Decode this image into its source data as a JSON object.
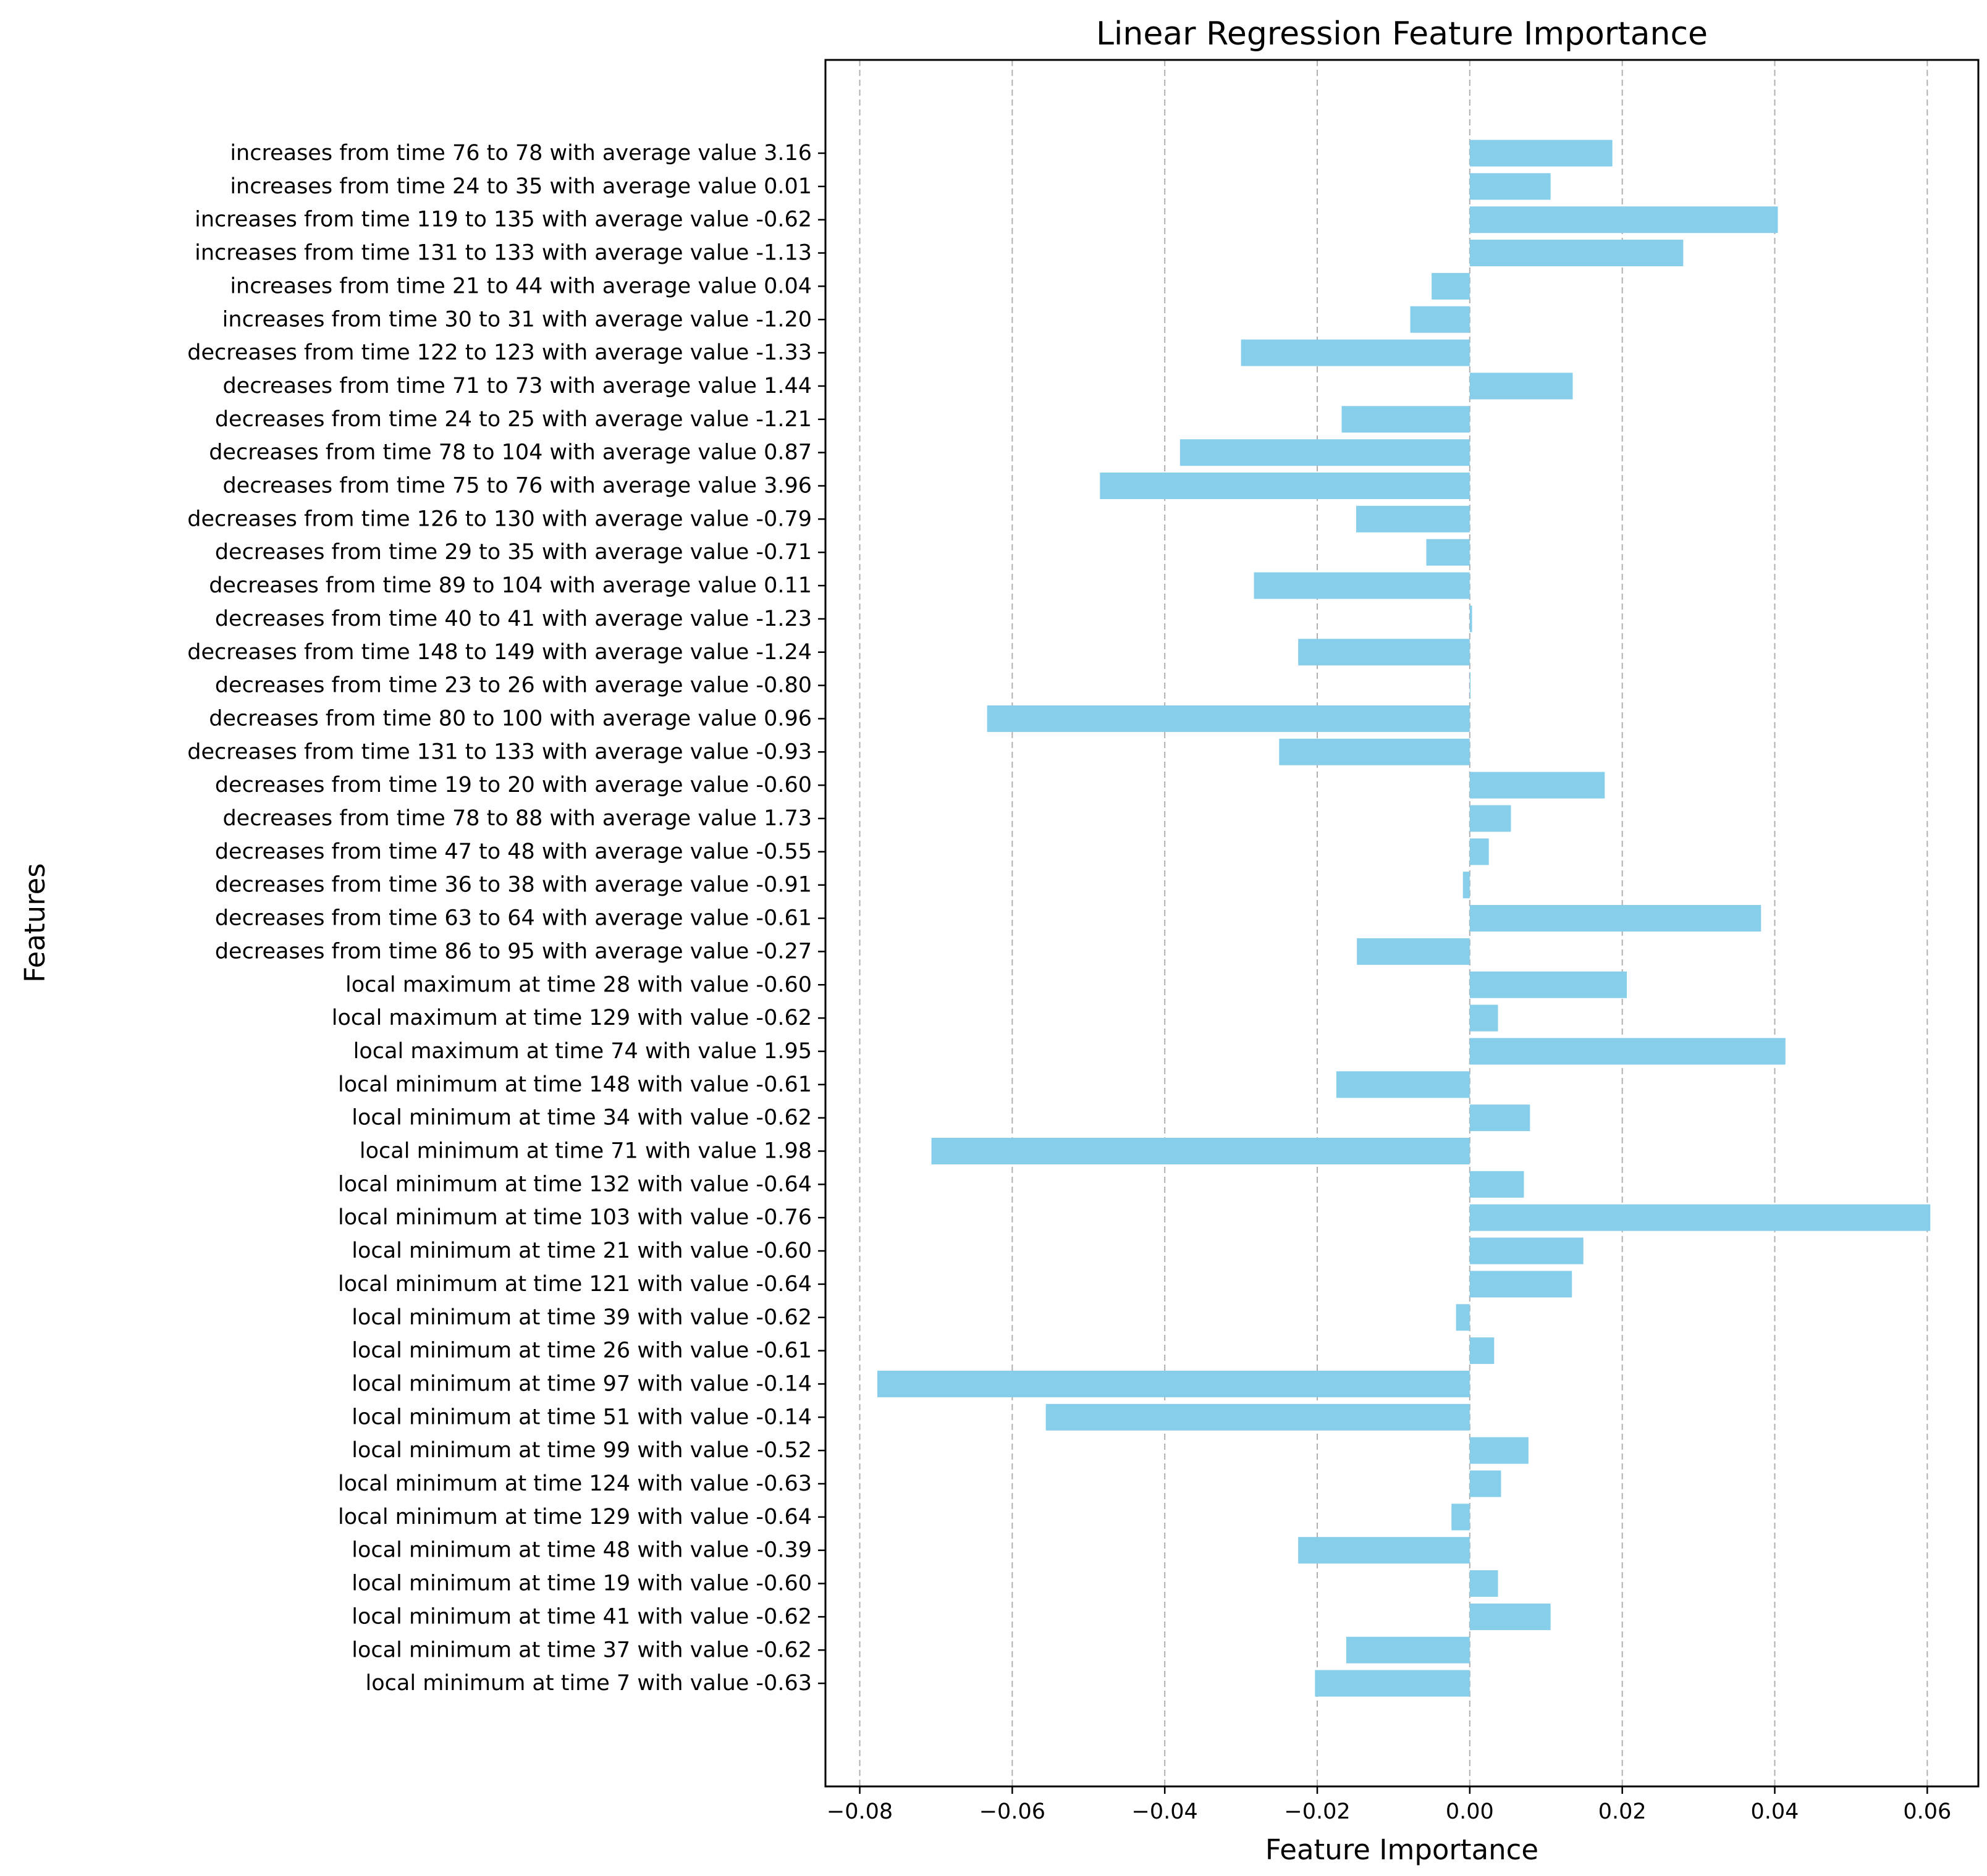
{
  "chart_data": {
    "type": "bar",
    "orientation": "horizontal",
    "title": "Linear Regression Feature Importance",
    "xlabel": "Feature Importance",
    "ylabel": "Features",
    "xlim": [
      -0.0845,
      0.0667
    ],
    "xticks": [
      -0.08,
      -0.06,
      -0.04,
      -0.02,
      0.0,
      0.02,
      0.04,
      0.06
    ],
    "xtick_labels": [
      "−0.08",
      "−0.06",
      "−0.04",
      "−0.02",
      "0.00",
      "0.02",
      "0.04",
      "0.06"
    ],
    "grid": "x-dashed",
    "bar_color": "#87ceeb",
    "categories": [
      "increases from time 76 to 78 with average value 3.16",
      "increases from time 24 to 35 with average value 0.01",
      "increases from time 119 to 135 with average value -0.62",
      "increases from time 131 to 133 with average value -1.13",
      "increases from time 21 to 44 with average value 0.04",
      "increases from time 30 to 31 with average value -1.20",
      "decreases from time 122 to 123 with average value -1.33",
      "decreases from time 71 to 73 with average value 1.44",
      "decreases from time 24 to 25 with average value -1.21",
      "decreases from time 78 to 104 with average value 0.87",
      "decreases from time 75 to 76 with average value 3.96",
      "decreases from time 126 to 130 with average value -0.79",
      "decreases from time 29 to 35 with average value -0.71",
      "decreases from time 89 to 104 with average value 0.11",
      "decreases from time 40 to 41 with average value -1.23",
      "decreases from time 148 to 149 with average value -1.24",
      "decreases from time 23 to 26 with average value -0.80",
      "decreases from time 80 to 100 with average value 0.96",
      "decreases from time 131 to 133 with average value -0.93",
      "decreases from time 19 to 20 with average value -0.60",
      "decreases from time 78 to 88 with average value 1.73",
      "decreases from time 47 to 48 with average value -0.55",
      "decreases from time 36 to 38 with average value -0.91",
      "decreases from time 63 to 64 with average value -0.61",
      "decreases from time 86 to 95 with average value -0.27",
      "local maximum at time 28 with value -0.60",
      "local maximum at time 129 with value -0.62",
      "local maximum at time 74 with value 1.95",
      "local minimum at time 148 with value -0.61",
      "local minimum at time 34 with value -0.62",
      "local minimum at time 71 with value 1.98",
      "local minimum at time 132 with value -0.64",
      "local minimum at time 103 with value -0.76",
      "local minimum at time 21 with value -0.60",
      "local minimum at time 121 with value -0.64",
      "local minimum at time 39 with value -0.62",
      "local minimum at time 26 with value -0.61",
      "local minimum at time 97 with value -0.14",
      "local minimum at time 51 with value -0.14",
      "local minimum at time 99 with value -0.52",
      "local minimum at time 124 with value -0.63",
      "local minimum at time 129 with value -0.64",
      "local minimum at time 48 with value -0.39",
      "local minimum at time 19 with value -0.60",
      "local minimum at time 41 with value -0.62",
      "local minimum at time 37 with value -0.62",
      "local minimum at time 7 with value -0.63"
    ],
    "values": [
      0.0187,
      0.0106,
      0.0404,
      0.028,
      -0.005,
      -0.0078,
      -0.03,
      0.0135,
      -0.0168,
      -0.038,
      -0.0485,
      -0.0149,
      -0.0057,
      -0.0283,
      0.0003,
      -0.0225,
      0.0001,
      -0.0633,
      -0.025,
      0.0177,
      0.0054,
      0.0025,
      -0.0009,
      0.0382,
      -0.0148,
      0.0206,
      0.0037,
      0.0414,
      -0.0175,
      0.0079,
      -0.0706,
      0.0071,
      0.0604,
      0.0149,
      0.0134,
      -0.0018,
      0.0032,
      -0.0777,
      -0.0556,
      0.0077,
      0.0041,
      -0.0024,
      -0.0225,
      0.0037,
      0.0106,
      -0.0162,
      -0.0203
    ]
  }
}
